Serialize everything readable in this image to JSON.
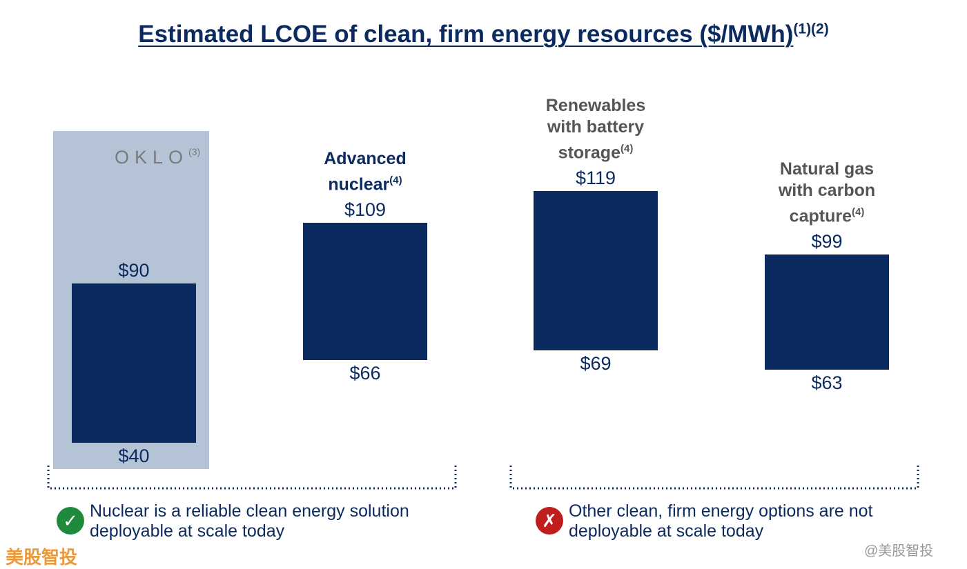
{
  "chart_data": {
    "type": "range_bar",
    "title": "Estimated LCOE of clean, firm energy resources ($/MWh)",
    "title_note": "(1)(2)",
    "categories": [
      "OKLO",
      "Advanced nuclear",
      "Renewables with battery storage",
      "Natural gas with carbon capture"
    ],
    "category_notes": [
      "(3)",
      "(4)",
      "(4)",
      "(4)"
    ],
    "low": [
      40,
      66,
      69,
      63
    ],
    "high": [
      90,
      109,
      119,
      99
    ],
    "low_labels": [
      "$40",
      "$66",
      "$69",
      "$63"
    ],
    "high_labels": [
      "$90",
      "$109",
      "$119",
      "$99"
    ],
    "color": "#0b2a5f",
    "highlight": 0
  },
  "notes": [
    {
      "icon": "✓",
      "text": "Nuclear is a reliable clean energy solution deployable at scale today"
    },
    {
      "icon": "✗",
      "text": "Other clean, firm energy options are not deployable at scale today"
    }
  ],
  "watermarks": [
    "美股智投",
    "@美股智投"
  ]
}
